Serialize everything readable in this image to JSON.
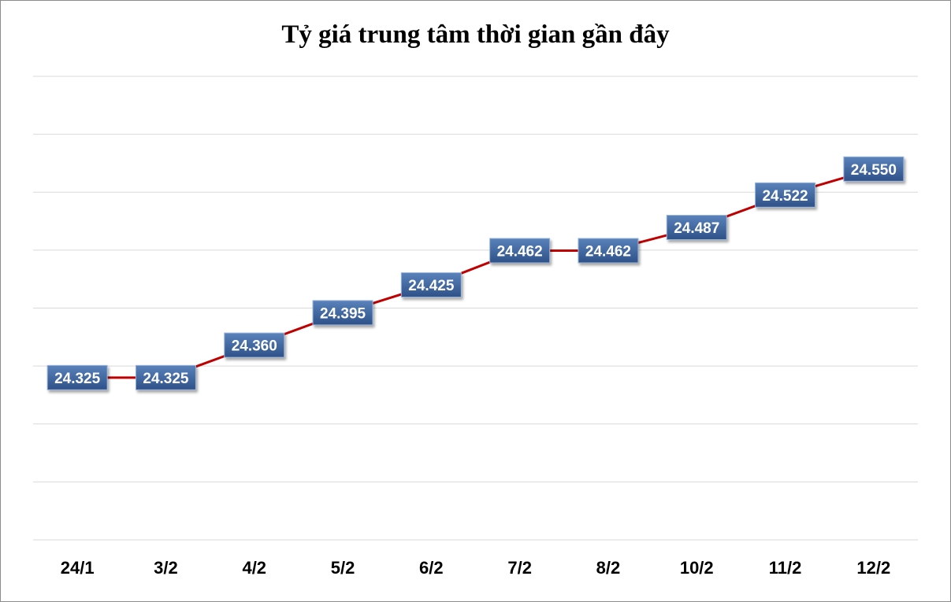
{
  "chart_data": {
    "type": "line",
    "title": "Tỷ giá trung tâm thời gian gần đây",
    "xlabel": "",
    "ylabel": "",
    "categories": [
      "24/1",
      "3/2",
      "4/2",
      "5/2",
      "6/2",
      "7/2",
      "8/2",
      "10/2",
      "11/2",
      "12/2"
    ],
    "series": [
      {
        "values": [
          24325,
          24325,
          24360,
          24395,
          24425,
          24462,
          24462,
          24487,
          24522,
          24550
        ]
      }
    ],
    "data_labels": [
      "24.325",
      "24.325",
      "24.360",
      "24.395",
      "24.425",
      "24.462",
      "24.462",
      "24.487",
      "24.522",
      "24.550"
    ],
    "ylim": [
      24150,
      24650
    ],
    "y_tick_labels_visible": false,
    "grid": true,
    "legend": "none",
    "colors": {
      "line": "#c00000",
      "label_box_top": "#4f77b0",
      "label_box_bottom": "#2e5188",
      "label_text": "#ffffff",
      "gridline": "#d9d9d9"
    }
  }
}
